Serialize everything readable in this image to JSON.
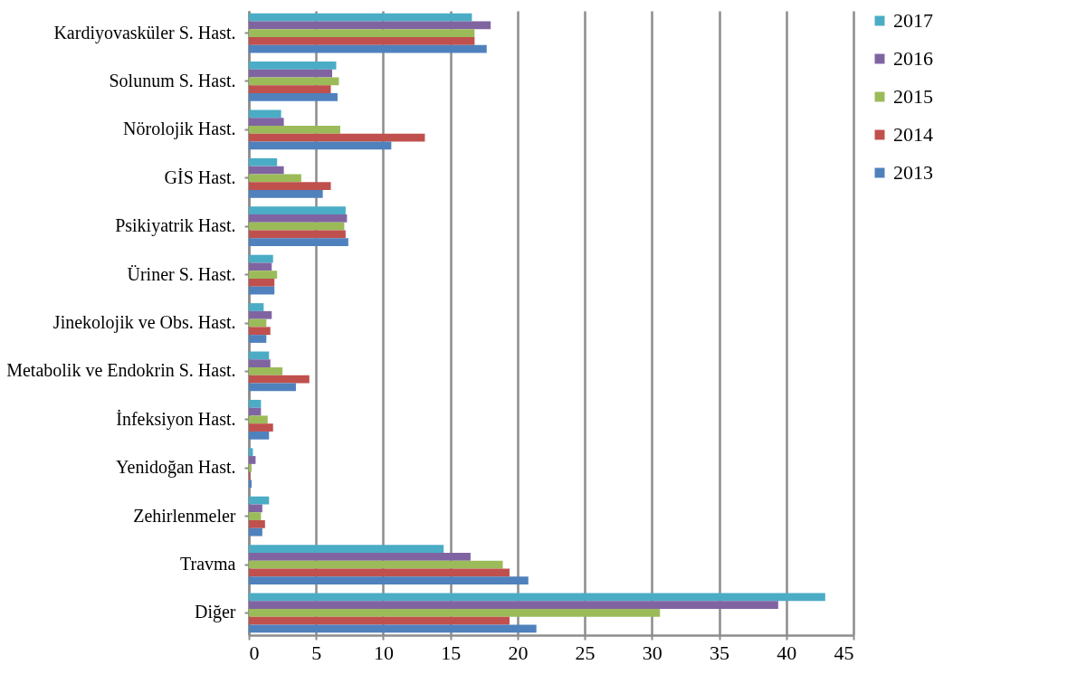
{
  "chart_data": {
    "type": "bar",
    "orientation": "horizontal",
    "categories": [
      "Kardiyovasküler S. Hast.",
      "Solunum S. Hast.",
      "Nörolojik Hast.",
      "GİS Hast.",
      "Psikiyatrik Hast.",
      "Üriner S. Hast.",
      "Jinekolojik ve Obs. Hast.",
      "Metabolik ve Endokrin S. Hast.",
      "İnfeksiyon Hast.",
      "Yenidoğan Hast.",
      "Zehirlenmeler",
      "Travma",
      "Diğer"
    ],
    "series": [
      {
        "name": "2017",
        "color": "#4bacc6",
        "values": [
          16.6,
          6.5,
          2.4,
          2.1,
          7.2,
          1.8,
          1.1,
          1.5,
          0.9,
          0.3,
          1.5,
          14.5,
          42.9
        ]
      },
      {
        "name": "2016",
        "color": "#8064a2",
        "values": [
          18.0,
          6.2,
          2.6,
          2.6,
          7.3,
          1.7,
          1.7,
          1.6,
          0.9,
          0.5,
          1.0,
          16.5,
          39.4
        ]
      },
      {
        "name": "2015",
        "color": "#9bbb59",
        "values": [
          16.8,
          6.7,
          6.8,
          3.9,
          7.1,
          2.1,
          1.3,
          2.5,
          1.4,
          0.2,
          0.9,
          18.9,
          30.6
        ]
      },
      {
        "name": "2014",
        "color": "#c0504d",
        "values": [
          16.8,
          6.1,
          13.1,
          6.1,
          7.2,
          1.9,
          1.6,
          4.5,
          1.8,
          0.1,
          1.2,
          19.4,
          19.4
        ]
      },
      {
        "name": "2013",
        "color": "#4f81bd",
        "values": [
          17.7,
          6.6,
          10.6,
          5.5,
          7.4,
          1.9,
          1.3,
          3.5,
          1.5,
          0.2,
          1.0,
          20.8,
          21.4
        ]
      }
    ],
    "xlim": [
      0,
      45
    ],
    "xticks": [
      0,
      5,
      10,
      15,
      20,
      25,
      30,
      35,
      40,
      45
    ],
    "grid": "x",
    "legend": "right"
  }
}
